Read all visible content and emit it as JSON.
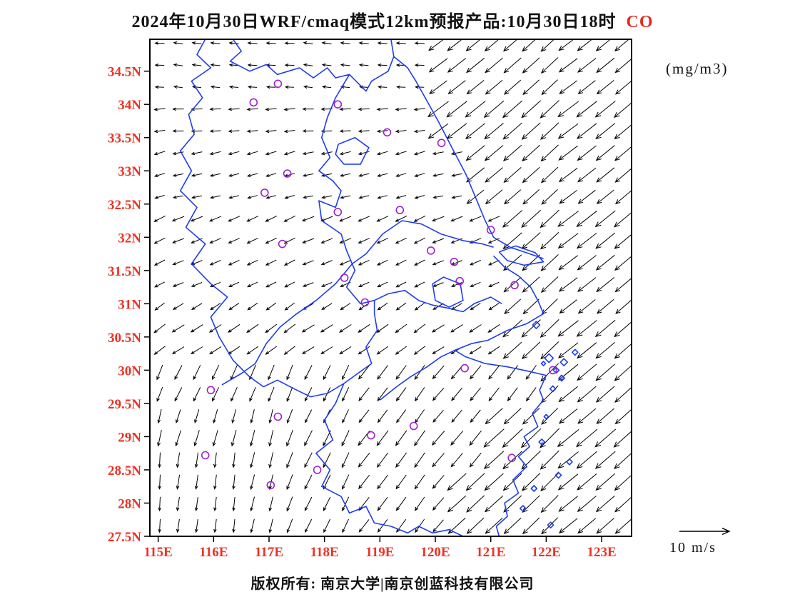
{
  "header": {
    "title_main": "2024年10月30日WRF/cmaq模式12km预报产品:10月30日18时",
    "species": "CO",
    "unit": "(mg/m3)"
  },
  "footer": {
    "copyright": "版权所有: 南京大学|南京创蓝科技有限公司"
  },
  "reference_arrow": {
    "label": "10 m/s",
    "speed_mps": 10
  },
  "colors": {
    "axis_label": "#ee3124",
    "boundary": "#1e3cf0",
    "station_marker": "#a020d0",
    "wind_vector": "#000000",
    "frame": "#000000",
    "species_label": "#e8291d"
  },
  "chart_data": {
    "type": "vector_field_map",
    "title": "2024年10月30日WRF/cmaq模式12km预报产品:10月30日18时 CO",
    "model": "WRF/cmaq 12km",
    "species": "CO",
    "unit": "mg/m3",
    "valid_time": "10月30日18时",
    "lon_range": [
      114.85,
      123.54
    ],
    "lat_range": [
      27.5,
      34.98
    ],
    "x_ticks": [
      {
        "value": 115,
        "label": "115E"
      },
      {
        "value": 116,
        "label": "116E"
      },
      {
        "value": 117,
        "label": "117E"
      },
      {
        "value": 118,
        "label": "118E"
      },
      {
        "value": 119,
        "label": "119E"
      },
      {
        "value": 120,
        "label": "120E"
      },
      {
        "value": 121,
        "label": "121E"
      },
      {
        "value": 122,
        "label": "122E"
      },
      {
        "value": 123,
        "label": "123E"
      }
    ],
    "y_ticks": [
      {
        "value": 34.5,
        "label": "34.5N"
      },
      {
        "value": 34,
        "label": "34N"
      },
      {
        "value": 33.5,
        "label": "33.5N"
      },
      {
        "value": 33,
        "label": "33N"
      },
      {
        "value": 32.5,
        "label": "32.5N"
      },
      {
        "value": 32,
        "label": "32N"
      },
      {
        "value": 31.5,
        "label": "31.5N"
      },
      {
        "value": 31,
        "label": "31N"
      },
      {
        "value": 30.5,
        "label": "30.5N"
      },
      {
        "value": 30,
        "label": "30N"
      },
      {
        "value": 29.5,
        "label": "29.5N"
      },
      {
        "value": 29,
        "label": "29N"
      },
      {
        "value": 28.5,
        "label": "28.5N"
      },
      {
        "value": 28,
        "label": "28N"
      },
      {
        "value": 27.5,
        "label": "27.5N"
      }
    ],
    "wind": {
      "reference": "10 m/s",
      "lon_start": 115.03,
      "lon_step": 0.335,
      "cols": 26,
      "lat_start": 27.66,
      "lat_step": 0.33,
      "rows": 23,
      "rules": [
        {
          "lat_min": 33.4,
          "lon_min": 119.9,
          "angle": 140,
          "len": 33
        },
        {
          "lat_min": 32.4,
          "lon_min": 120.7,
          "angle": 140,
          "len": 33
        },
        {
          "lat_min": 31.1,
          "lon_min": 121.3,
          "angle": 140,
          "len": 33
        },
        {
          "lat_min": 30.3,
          "lon_min": 121.35,
          "angle": 139,
          "len": 33
        },
        {
          "lat_max": 31.1,
          "lon_min": 121.75,
          "angle": 138,
          "len": 35
        },
        {
          "lat_max": 29.55,
          "lon_min": 120.95,
          "angle": 138,
          "len": 35
        },
        {
          "lat_max": 28.55,
          "lon_min": 120.25,
          "angle": 136,
          "len": 35
        },
        {
          "lat_min": 34.25,
          "angle": 185,
          "len": 13
        },
        {
          "lat_min": 33.3,
          "angle": 176,
          "len": 14
        },
        {
          "lat_min": 32.3,
          "angle": 166,
          "len": 15
        },
        {
          "lat_min": 31.1,
          "angle": 156,
          "len": 16
        },
        {
          "lat_min": 30.2,
          "angle": 146,
          "len": 18
        },
        {
          "lon_max": 116.5,
          "lat_max": 28.8,
          "angle": 96,
          "len": 20
        },
        {
          "lon_max": 117.2,
          "lat_max": 29.6,
          "angle": 105,
          "len": 21
        },
        {
          "lon_max": 118.5,
          "lat_max": 30.2,
          "angle": 114,
          "len": 22
        },
        {
          "angle": 128,
          "len": 24
        }
      ]
    },
    "stations": [
      [
        117.16,
        34.31
      ],
      [
        116.72,
        34.03
      ],
      [
        118.24,
        34.0
      ],
      [
        119.13,
        33.58
      ],
      [
        120.11,
        33.42
      ],
      [
        117.33,
        32.96
      ],
      [
        116.92,
        32.67
      ],
      [
        118.24,
        32.38
      ],
      [
        119.36,
        32.41
      ],
      [
        121.0,
        32.11
      ],
      [
        117.24,
        31.9
      ],
      [
        119.92,
        31.8
      ],
      [
        120.34,
        31.63
      ],
      [
        118.36,
        31.39
      ],
      [
        120.44,
        31.34
      ],
      [
        121.43,
        31.28
      ],
      [
        118.73,
        31.02
      ],
      [
        120.53,
        30.03
      ],
      [
        122.12,
        30.0
      ],
      [
        115.95,
        29.7
      ],
      [
        117.16,
        29.3
      ],
      [
        119.61,
        29.16
      ],
      [
        118.84,
        29.02
      ],
      [
        115.85,
        28.72
      ],
      [
        117.87,
        28.5
      ],
      [
        117.03,
        28.27
      ],
      [
        121.38,
        28.68
      ]
    ],
    "boundaries": {
      "color": "#1e3cf0",
      "polylines": [
        [
          [
            116.35,
            34.98
          ],
          [
            116.5,
            34.8
          ],
          [
            116.3,
            34.65
          ],
          [
            116.65,
            34.5
          ],
          [
            116.95,
            34.6
          ],
          [
            117.15,
            34.45
          ],
          [
            117.55,
            34.55
          ],
          [
            117.8,
            34.4
          ],
          [
            118.05,
            34.55
          ],
          [
            118.2,
            34.4
          ],
          [
            118.45,
            34.45
          ],
          [
            118.75,
            34.2
          ],
          [
            118.85,
            34.35
          ],
          [
            119.15,
            34.5
          ],
          [
            119.25,
            34.72
          ]
        ],
        [
          [
            119.2,
            34.98
          ],
          [
            119.25,
            34.72
          ],
          [
            119.5,
            34.55
          ],
          [
            119.65,
            34.35
          ],
          [
            119.85,
            34.05
          ],
          [
            120.05,
            33.75
          ],
          [
            120.3,
            33.35
          ],
          [
            120.55,
            32.95
          ],
          [
            120.75,
            32.55
          ],
          [
            120.9,
            32.25
          ],
          [
            121.05,
            32.0
          ],
          [
            121.35,
            31.85
          ],
          [
            121.6,
            31.78
          ],
          [
            121.95,
            31.68
          ]
        ],
        [
          [
            121.15,
            31.78
          ],
          [
            121.45,
            31.87
          ],
          [
            121.8,
            31.77
          ],
          [
            121.95,
            31.63
          ],
          [
            121.6,
            31.58
          ],
          [
            121.3,
            31.65
          ],
          [
            121.15,
            31.78
          ]
        ],
        [
          [
            121.05,
            31.72
          ],
          [
            121.25,
            31.55
          ],
          [
            121.5,
            31.42
          ],
          [
            121.72,
            31.25
          ],
          [
            121.85,
            31.05
          ],
          [
            121.95,
            30.85
          ],
          [
            121.65,
            30.7
          ],
          [
            121.3,
            30.6
          ],
          [
            120.95,
            30.45
          ],
          [
            120.65,
            30.4
          ],
          [
            120.35,
            30.3
          ]
        ],
        [
          [
            120.35,
            30.3
          ],
          [
            120.55,
            30.2
          ],
          [
            120.9,
            30.1
          ],
          [
            121.3,
            30.05
          ],
          [
            121.7,
            29.98
          ],
          [
            122.0,
            29.92
          ]
        ],
        [
          [
            122.0,
            29.92
          ],
          [
            121.88,
            29.7
          ],
          [
            121.95,
            29.55
          ],
          [
            121.75,
            29.35
          ],
          [
            121.85,
            29.15
          ],
          [
            121.6,
            29.0
          ],
          [
            121.7,
            28.85
          ],
          [
            121.5,
            28.7
          ],
          [
            121.65,
            28.55
          ],
          [
            121.4,
            28.35
          ],
          [
            121.5,
            28.15
          ],
          [
            121.25,
            28.0
          ],
          [
            121.3,
            27.8
          ],
          [
            121.1,
            27.65
          ],
          [
            121.15,
            27.5
          ]
        ],
        [
          [
            118.45,
            34.45
          ],
          [
            118.2,
            34.1
          ],
          [
            118.05,
            33.8
          ],
          [
            117.95,
            33.5
          ],
          [
            118.1,
            33.2
          ],
          [
            117.9,
            33.0
          ],
          [
            118.15,
            32.85
          ],
          [
            118.3,
            32.7
          ],
          [
            118.2,
            32.45
          ],
          [
            117.9,
            32.55
          ],
          [
            117.95,
            32.25
          ],
          [
            118.3,
            32.05
          ],
          [
            118.4,
            31.8
          ],
          [
            118.55,
            31.5
          ],
          [
            118.4,
            31.25
          ],
          [
            118.65,
            31.0
          ],
          [
            118.9,
            31.05
          ],
          [
            119.15,
            31.15
          ],
          [
            119.45,
            31.2
          ],
          [
            119.7,
            31.05
          ],
          [
            119.95,
            30.98
          ],
          [
            120.25,
            30.93
          ],
          [
            120.5,
            30.88
          ],
          [
            120.7,
            31.0
          ],
          [
            121.0,
            31.1
          ],
          [
            121.2,
            31.0
          ]
        ],
        [
          [
            115.85,
            34.98
          ],
          [
            115.7,
            34.75
          ],
          [
            115.95,
            34.55
          ],
          [
            115.6,
            34.35
          ],
          [
            115.8,
            34.1
          ],
          [
            115.55,
            33.85
          ],
          [
            115.65,
            33.55
          ],
          [
            115.4,
            33.3
          ],
          [
            115.6,
            33.0
          ],
          [
            115.4,
            32.7
          ],
          [
            115.7,
            32.45
          ],
          [
            115.5,
            32.15
          ],
          [
            115.85,
            31.9
          ],
          [
            115.6,
            31.6
          ],
          [
            115.95,
            31.3
          ],
          [
            116.25,
            31.1
          ],
          [
            115.95,
            30.8
          ],
          [
            116.1,
            30.5
          ],
          [
            116.35,
            30.15
          ],
          [
            116.65,
            29.9
          ],
          [
            116.9,
            29.75
          ]
        ],
        [
          [
            116.9,
            29.75
          ],
          [
            117.15,
            29.85
          ],
          [
            117.5,
            29.7
          ],
          [
            117.75,
            29.6
          ],
          [
            118.05,
            29.65
          ],
          [
            118.35,
            29.8
          ],
          [
            118.6,
            29.95
          ],
          [
            118.85,
            30.1
          ],
          [
            118.75,
            30.35
          ],
          [
            118.95,
            30.6
          ],
          [
            118.9,
            30.85
          ],
          [
            118.9,
            31.05
          ]
        ],
        [
          [
            118.35,
            29.8
          ],
          [
            118.2,
            29.5
          ],
          [
            118.0,
            29.25
          ],
          [
            118.15,
            28.95
          ],
          [
            117.85,
            28.75
          ],
          [
            118.1,
            28.5
          ],
          [
            117.95,
            28.25
          ],
          [
            118.3,
            28.1
          ],
          [
            118.45,
            27.85
          ],
          [
            118.75,
            27.95
          ],
          [
            118.9,
            27.7
          ],
          [
            119.2,
            27.65
          ],
          [
            119.5,
            27.55
          ],
          [
            119.7,
            27.65
          ],
          [
            119.95,
            27.55
          ],
          [
            120.25,
            27.6
          ],
          [
            120.5,
            27.5
          ]
        ],
        [
          [
            116.15,
            29.78
          ],
          [
            116.5,
            29.95
          ],
          [
            116.75,
            30.1
          ],
          [
            116.95,
            30.4
          ],
          [
            117.2,
            30.65
          ],
          [
            117.5,
            30.85
          ],
          [
            117.85,
            31.05
          ],
          [
            118.2,
            31.3
          ],
          [
            118.5,
            31.6
          ],
          [
            118.75,
            31.75
          ],
          [
            119.05,
            32.05
          ],
          [
            119.4,
            32.25
          ],
          [
            119.75,
            32.2
          ],
          [
            120.1,
            32.05
          ],
          [
            120.5,
            31.95
          ],
          [
            120.85,
            31.9
          ],
          [
            121.05,
            31.85
          ]
        ],
        [
          [
            118.25,
            33.4
          ],
          [
            118.55,
            33.5
          ],
          [
            118.8,
            33.35
          ],
          [
            118.65,
            33.1
          ],
          [
            118.35,
            33.1
          ],
          [
            118.2,
            33.25
          ],
          [
            118.25,
            33.4
          ]
        ],
        [
          [
            119.95,
            31.3
          ],
          [
            120.15,
            31.4
          ],
          [
            120.45,
            31.3
          ],
          [
            120.5,
            31.05
          ],
          [
            120.25,
            30.95
          ],
          [
            120.0,
            31.05
          ],
          [
            119.95,
            31.3
          ]
        ],
        [
          [
            120.35,
            30.3
          ],
          [
            120.1,
            30.2
          ],
          [
            119.85,
            30.05
          ],
          [
            119.55,
            29.9
          ],
          [
            119.3,
            29.75
          ],
          [
            119.0,
            29.55
          ]
        ]
      ]
    },
    "islands": [
      [
        121.82,
        30.68,
        5
      ],
      [
        122.05,
        30.18,
        6
      ],
      [
        122.32,
        30.12,
        5
      ],
      [
        122.18,
        30.0,
        4
      ],
      [
        122.52,
        30.27,
        4
      ],
      [
        121.95,
        30.1,
        3
      ],
      [
        122.28,
        29.88,
        4
      ],
      [
        122.12,
        29.72,
        4
      ],
      [
        122.0,
        29.3,
        3
      ],
      [
        121.92,
        28.92,
        4
      ],
      [
        122.42,
        28.62,
        4
      ],
      [
        122.22,
        28.42,
        4
      ],
      [
        121.78,
        28.22,
        4
      ],
      [
        121.58,
        27.92,
        4
      ],
      [
        122.08,
        27.67,
        4
      ]
    ]
  }
}
